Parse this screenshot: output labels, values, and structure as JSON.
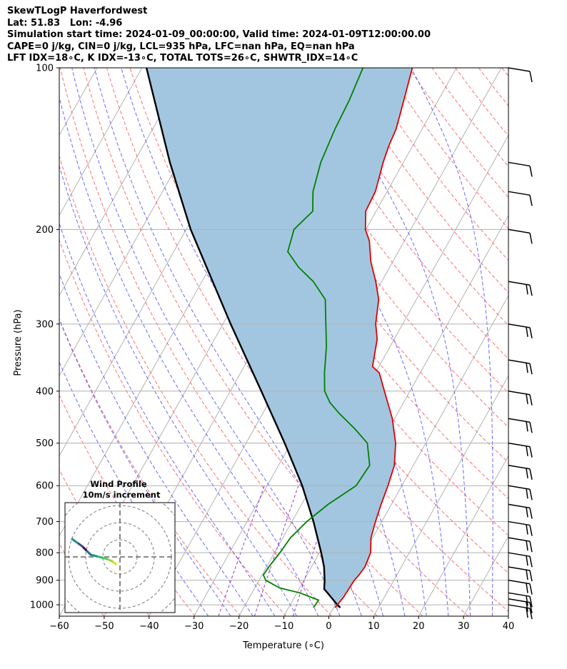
{
  "header": {
    "line1": "SkewTLogP Haverfordwest",
    "line2": "Lat: 51.83   Lon: -4.96",
    "line3": "Simulation start time: 2024-01-09_00:00:00, Valid time: 2024-01-09T12:00:00.00",
    "line4": "CAPE=0 j/kg, CIN=0 j/kg, LCL=935 hPa, LFC=nan hPa, EQ=nan hPa",
    "line5": "LFT IDX=18∘C, K IDX=-13∘C, TOTAL TOTS=26∘C, SHWTR_IDX=14∘C"
  },
  "chart_data": {
    "type": "line",
    "skew_deg_per_decade": 67,
    "xlabel": "Temperature (∘C)",
    "ylabel": "Pressure (hPa)",
    "xlim": [
      -60,
      40
    ],
    "ylim": [
      1050,
      100
    ],
    "y_scale": "log",
    "grid": true,
    "x_ticks": [
      -60,
      -50,
      -40,
      -30,
      -20,
      -10,
      0,
      10,
      20,
      30,
      40
    ],
    "x_tick_labels": [
      "−60",
      "−50",
      "−40",
      "−30",
      "−20",
      "−10",
      "0",
      "10",
      "20",
      "30",
      "40"
    ],
    "y_ticks": [
      1000,
      900,
      800,
      700,
      600,
      500,
      400,
      300,
      200,
      100
    ],
    "y_tick_labels": [
      "1000",
      "900",
      "800",
      "700",
      "600",
      "500",
      "400",
      "300",
      "200",
      "100"
    ],
    "colors": {
      "temperature": "#e00000",
      "dewpoint": "#008000",
      "parcel": "#000000",
      "cape_fill": "#a2c6e0",
      "dry_adiabat": "#ff5555",
      "moist_adiabat": "#4444ff",
      "isotherm": "#aaaaaa",
      "mixing_ratio": "#9933cc"
    },
    "series": [
      {
        "key": "temperature",
        "points": [
          [
            1012,
            0.3
          ],
          [
            1000,
            0.5
          ],
          [
            970,
            0.9
          ],
          [
            950,
            1.0
          ],
          [
            925,
            1.1
          ],
          [
            900,
            1.2
          ],
          [
            880,
            1.6
          ],
          [
            850,
            1.9
          ],
          [
            800,
            1.4
          ],
          [
            750,
            -0.4
          ],
          [
            700,
            -1.4
          ],
          [
            650,
            -2.3
          ],
          [
            600,
            -3.1
          ],
          [
            550,
            -4.2
          ],
          [
            500,
            -6.7
          ],
          [
            450,
            -10.5
          ],
          [
            400,
            -15.7
          ],
          [
            370,
            -19.1
          ],
          [
            360,
            -21.4
          ],
          [
            320,
            -23.8
          ],
          [
            300,
            -26.0
          ],
          [
            270,
            -28.4
          ],
          [
            250,
            -31.3
          ],
          [
            230,
            -34.8
          ],
          [
            210,
            -37.8
          ],
          [
            200,
            -40.1
          ],
          [
            185,
            -42.3
          ],
          [
            170,
            -42.6
          ],
          [
            150,
            -44.5
          ],
          [
            140,
            -45.3
          ],
          [
            130,
            -45.8
          ],
          [
            120,
            -47.0
          ],
          [
            100,
            -49.8
          ]
        ]
      },
      {
        "key": "dewpoint",
        "points": [
          [
            1012,
            -4.5
          ],
          [
            1000,
            -4.4
          ],
          [
            980,
            -4.3
          ],
          [
            950,
            -9.4
          ],
          [
            930,
            -14.5
          ],
          [
            900,
            -18.5
          ],
          [
            880,
            -19.7
          ],
          [
            850,
            -19.5
          ],
          [
            800,
            -18.8
          ],
          [
            750,
            -18.3
          ],
          [
            700,
            -16.7
          ],
          [
            650,
            -14.1
          ],
          [
            600,
            -10.2
          ],
          [
            550,
            -9.7
          ],
          [
            500,
            -13.0
          ],
          [
            470,
            -17.6
          ],
          [
            440,
            -23.0
          ],
          [
            420,
            -26.4
          ],
          [
            400,
            -29.0
          ],
          [
            370,
            -31.3
          ],
          [
            330,
            -34.2
          ],
          [
            300,
            -37.1
          ],
          [
            270,
            -40.3
          ],
          [
            250,
            -45.2
          ],
          [
            235,
            -50.3
          ],
          [
            220,
            -54.6
          ],
          [
            200,
            -56.0
          ],
          [
            185,
            -54.1
          ],
          [
            170,
            -56.5
          ],
          [
            150,
            -58.4
          ],
          [
            130,
            -59.4
          ],
          [
            115,
            -59.8
          ],
          [
            100,
            -60.8
          ]
        ]
      },
      {
        "key": "parcel",
        "points": [
          [
            1012,
            1.5
          ],
          [
            1000,
            0.5
          ],
          [
            970,
            -1.7
          ],
          [
            950,
            -3.2
          ],
          [
            935,
            -4.4
          ],
          [
            900,
            -5.4
          ],
          [
            850,
            -7.2
          ],
          [
            800,
            -9.6
          ],
          [
            700,
            -15.2
          ],
          [
            600,
            -22.2
          ],
          [
            500,
            -31.4
          ],
          [
            400,
            -43.1
          ],
          [
            300,
            -58.3
          ],
          [
            200,
            -79.0
          ],
          [
            150,
            -92.0
          ],
          [
            100,
            -109.0
          ]
        ]
      }
    ],
    "wind_barbs_pressure_hpa": [
      100,
      150,
      170,
      200,
      250,
      300,
      350,
      400,
      450,
      500,
      550,
      600,
      650,
      700,
      750,
      800,
      850,
      900,
      950,
      975,
      1000
    ],
    "hodograph": {
      "title_line1": "Wind Profile",
      "title_line2": "10m/s increment",
      "rings_ms": [
        10,
        20,
        30,
        40
      ]
    }
  }
}
